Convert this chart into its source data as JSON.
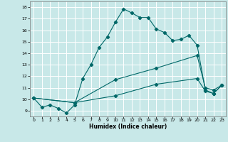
{
  "xlabel": "Humidex (Indice chaleur)",
  "bg_color": "#c8e8e8",
  "line_color": "#006868",
  "grid_color": "#ffffff",
  "xlim": [
    -0.5,
    23.5
  ],
  "ylim": [
    8.5,
    18.5
  ],
  "xticks": [
    0,
    1,
    2,
    3,
    4,
    5,
    6,
    7,
    8,
    9,
    10,
    11,
    12,
    13,
    14,
    15,
    16,
    17,
    18,
    19,
    20,
    21,
    22,
    23
  ],
  "yticks": [
    9,
    10,
    11,
    12,
    13,
    14,
    15,
    16,
    17,
    18
  ],
  "line1_x": [
    0,
    1,
    2,
    3,
    4,
    5,
    6,
    7,
    8,
    9,
    10,
    11,
    12,
    13,
    14,
    15,
    16,
    17,
    18,
    19,
    20,
    21,
    22,
    23
  ],
  "line1_y": [
    10.1,
    9.3,
    9.5,
    9.2,
    8.8,
    9.5,
    11.8,
    13.0,
    14.5,
    15.4,
    16.7,
    17.85,
    17.5,
    17.1,
    17.1,
    16.1,
    15.8,
    15.1,
    15.2,
    15.55,
    14.7,
    10.8,
    10.5,
    11.2
  ],
  "line2_x": [
    0,
    5,
    10,
    15,
    20,
    21,
    22,
    23
  ],
  "line2_y": [
    10.1,
    9.7,
    11.7,
    12.7,
    13.8,
    11.0,
    10.8,
    11.2
  ],
  "line3_x": [
    0,
    5,
    10,
    15,
    20,
    21,
    22,
    23
  ],
  "line3_y": [
    10.1,
    9.7,
    10.3,
    11.3,
    11.8,
    10.7,
    10.5,
    11.2
  ]
}
